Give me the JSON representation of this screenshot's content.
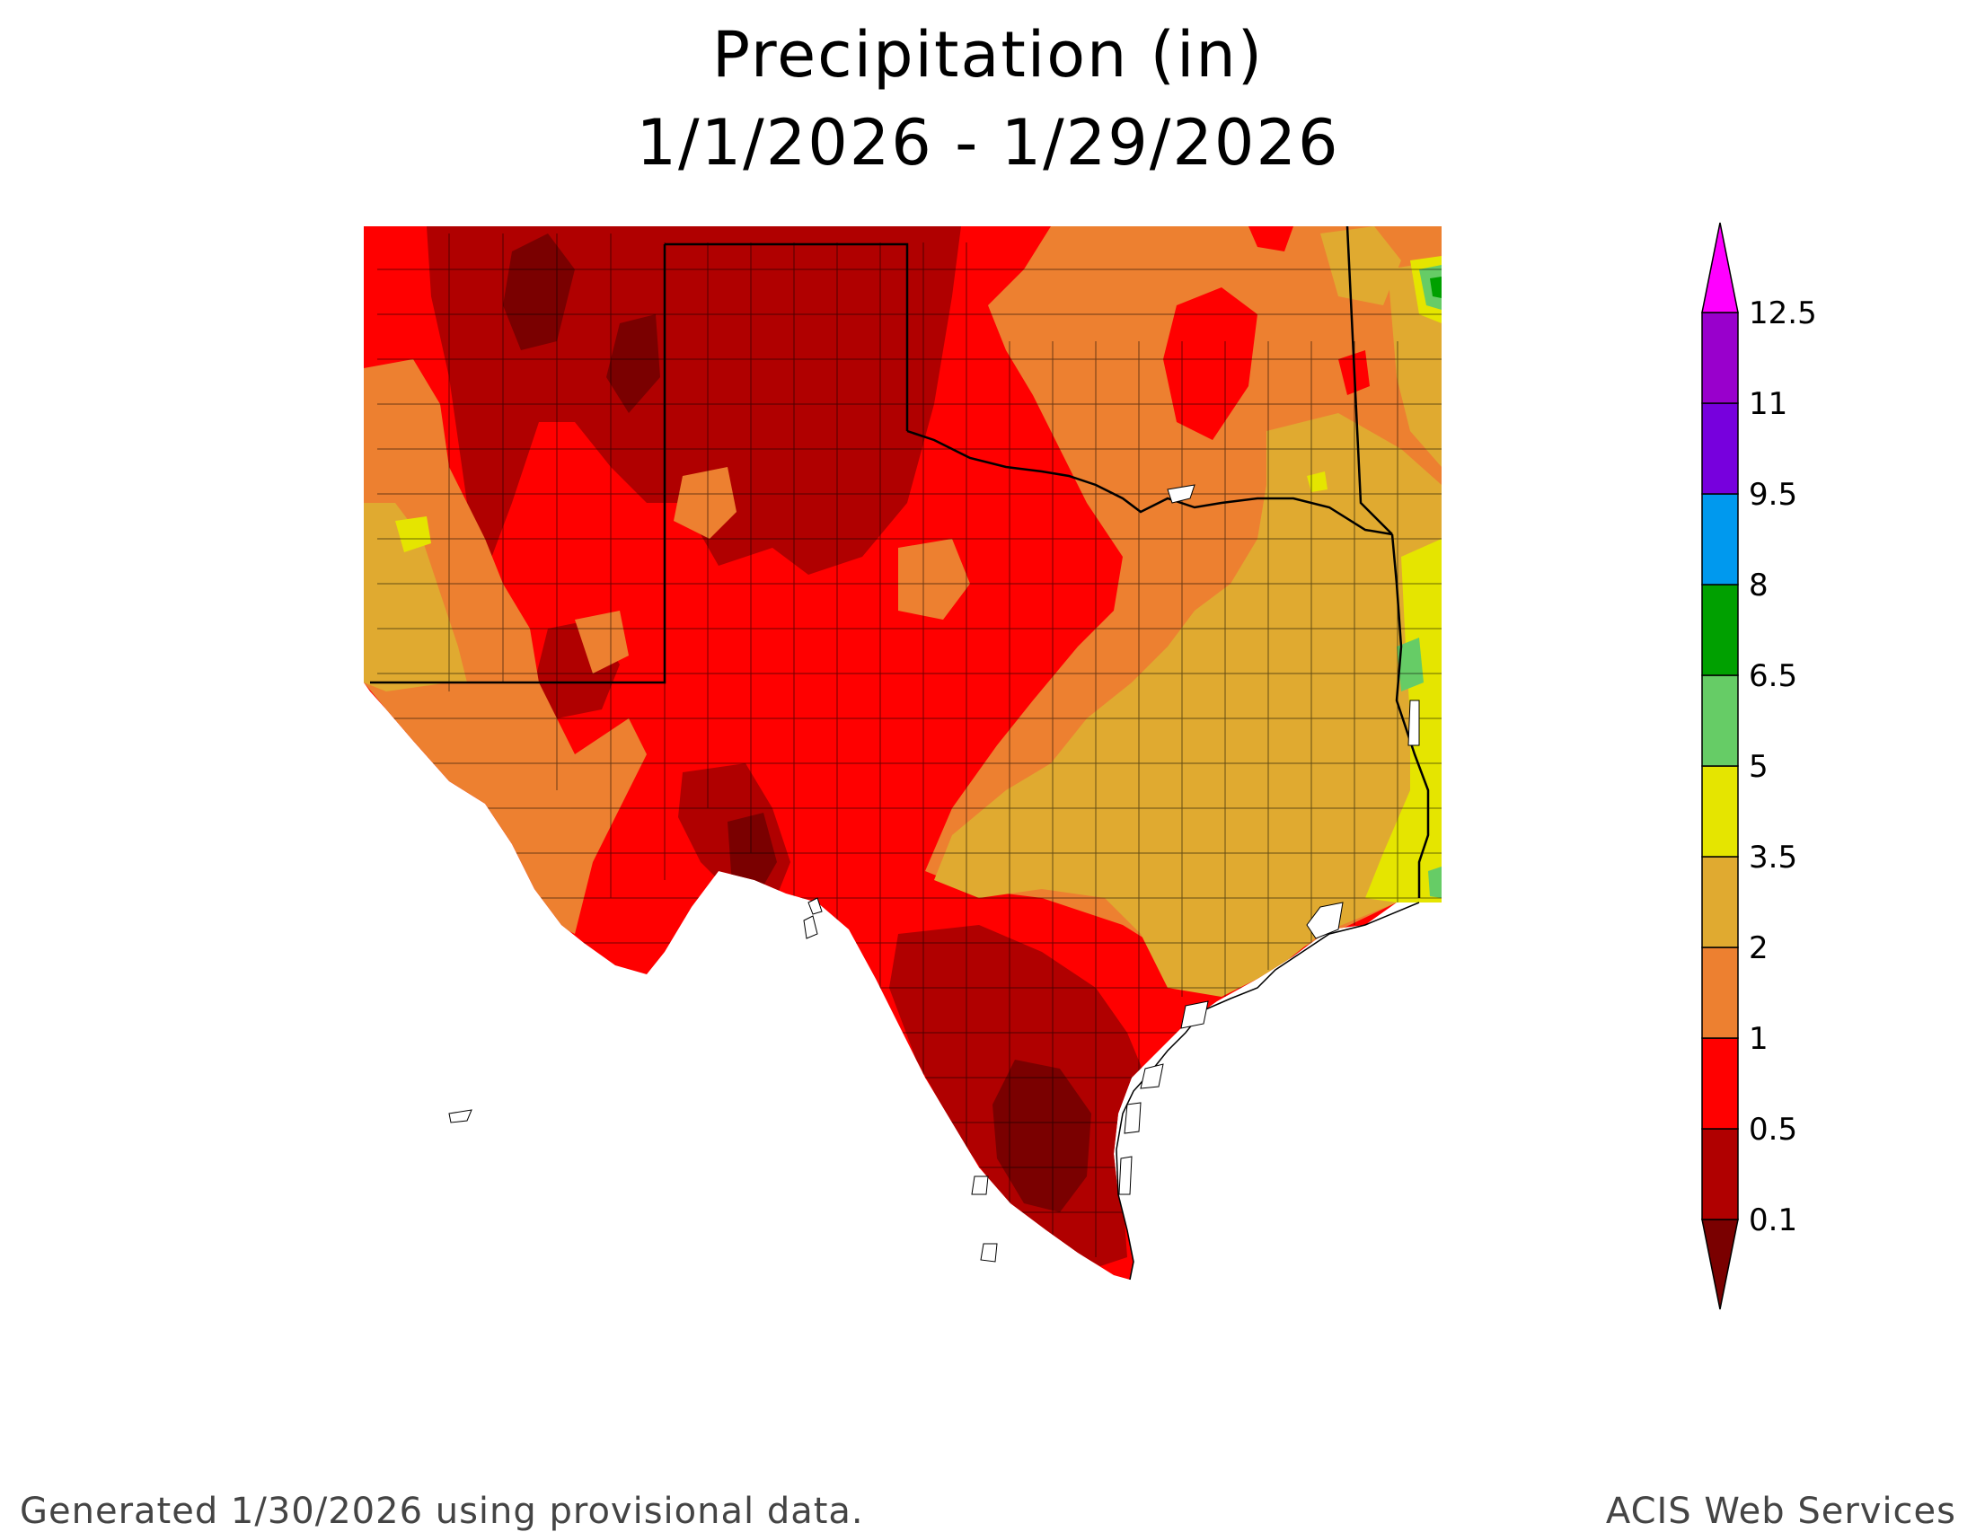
{
  "title": {
    "line1": "Precipitation (in)",
    "line2": "1/1/2026 - 1/29/2026"
  },
  "legend": {
    "bins": [
      {
        "label": "0.1",
        "color": "#b00000"
      },
      {
        "label": "0.5",
        "color": "#ff0000"
      },
      {
        "label": "1",
        "color": "#ed8030"
      },
      {
        "label": "2",
        "color": "#e0aa30"
      },
      {
        "label": "3.5",
        "color": "#e5e500"
      },
      {
        "label": "5",
        "color": "#66cc66"
      },
      {
        "label": "6.5",
        "color": "#00a000"
      },
      {
        "label": "8",
        "color": "#0099ee"
      },
      {
        "label": "9.5",
        "color": "#7700dd"
      },
      {
        "label": "11",
        "color": "#9900cc"
      },
      {
        "label": "12.5",
        "color": "#ff00ff"
      }
    ],
    "low_color": "#7a0000",
    "high_color": "#ff00ff"
  },
  "footer": {
    "left": "Generated 1/30/2026  using provisional data.",
    "right": "ACIS Web Services"
  },
  "colors": {
    "darkest": "#7a0000",
    "dark_red": "#b00000",
    "red": "#ff0000",
    "orange": "#ed8030",
    "tan": "#e0aa30",
    "yellow": "#e5e500",
    "lightgreen": "#66cc66",
    "green": "#00a000",
    "water": "#ffffff",
    "border": "#000000"
  }
}
